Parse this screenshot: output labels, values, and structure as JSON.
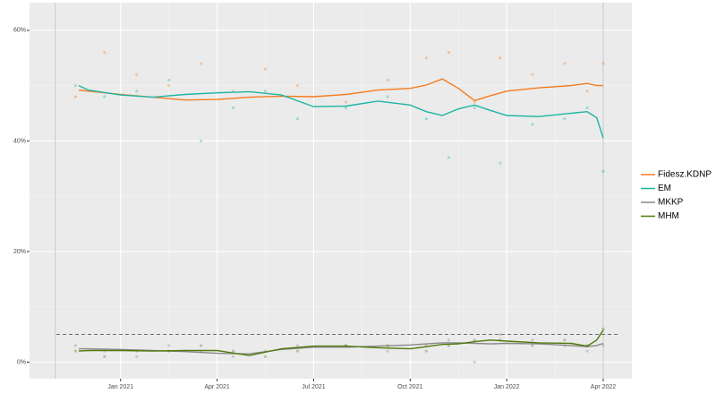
{
  "chart_data": {
    "type": "line",
    "x": [
      -1.3,
      -1,
      0,
      1,
      2,
      3,
      4,
      5,
      6,
      7,
      8,
      9,
      9.5,
      10,
      10.5,
      11,
      11.5,
      12,
      13,
      14,
      14.5,
      14.8,
      15
    ],
    "poll_x": [
      -1.4,
      -0.5,
      0.5,
      1.5,
      2.5,
      3.5,
      4.5,
      5.5,
      7,
      8.3,
      9.5,
      10.2,
      11,
      11.8,
      12.8,
      13.8,
      14.5,
      15
    ],
    "series": [
      {
        "name": "Fidesz.KDNP",
        "color": "#f57c1f",
        "values": [
          49.2,
          49.0,
          48.4,
          47.9,
          47.4,
          47.5,
          47.9,
          48.1,
          48.0,
          48.4,
          49.2,
          49.5,
          50.1,
          51.2,
          49.5,
          47.3,
          48.2,
          49.0,
          49.6,
          50.0,
          50.4,
          50.0,
          50.0
        ],
        "poll_values": [
          48,
          56,
          52,
          50,
          54,
          49,
          53,
          50,
          47,
          51,
          55,
          56,
          47,
          55,
          52,
          54,
          49,
          54
        ]
      },
      {
        "name": "EM",
        "color": "#1db5a3",
        "values": [
          50.0,
          49.2,
          48.3,
          47.9,
          48.4,
          48.7,
          48.9,
          48.3,
          46.2,
          46.3,
          47.2,
          46.5,
          45.3,
          44.6,
          45.8,
          46.5,
          45.5,
          44.6,
          44.4,
          45.0,
          45.3,
          44.2,
          40.5
        ],
        "poll_values": [
          50,
          48,
          49,
          51,
          40,
          46,
          49,
          44,
          46,
          48,
          44,
          37,
          46,
          36,
          43,
          44,
          46,
          34.5
        ]
      },
      {
        "name": "MKKP",
        "color": "#888888",
        "values": [
          2.4,
          2.4,
          2.3,
          2.1,
          1.9,
          1.6,
          1.5,
          2.3,
          2.7,
          2.7,
          2.9,
          3.1,
          3.3,
          3.5,
          3.5,
          3.4,
          3.3,
          3.4,
          3.3,
          3.0,
          2.8,
          3.0,
          3.4
        ],
        "poll_values": [
          3,
          2,
          1,
          3,
          2,
          1,
          2,
          3,
          3,
          2,
          3,
          4,
          0,
          5,
          4,
          3,
          2,
          3
        ]
      },
      {
        "name": "MHM",
        "color": "#4f7a0b",
        "values": [
          2.0,
          2.1,
          2.1,
          2.0,
          2.1,
          2.1,
          1.2,
          2.4,
          2.9,
          2.9,
          2.6,
          2.4,
          2.8,
          3.2,
          3.3,
          3.7,
          4.0,
          3.8,
          3.5,
          3.4,
          2.9,
          4.0,
          5.8
        ],
        "poll_values": [
          2,
          1,
          2,
          2,
          3,
          2,
          1,
          2,
          3,
          3,
          2,
          3,
          4,
          4,
          3,
          4,
          3,
          6
        ]
      }
    ],
    "xlim": [
      -2.83,
      15.89
    ],
    "xticks": [
      {
        "value": 0,
        "label": "Jan 2021"
      },
      {
        "value": 3,
        "label": "Apr 2021"
      },
      {
        "value": 6,
        "label": "Jul 2021"
      },
      {
        "value": 9,
        "label": "Oct 2021"
      },
      {
        "value": 12,
        "label": "Jan 2022"
      },
      {
        "value": 15,
        "label": "Apr 2022"
      }
    ],
    "ylim": [
      -3,
      65
    ],
    "yticks": [
      {
        "value": 0,
        "label": "0%"
      },
      {
        "value": 20,
        "label": "20%"
      },
      {
        "value": 40,
        "label": "40%"
      },
      {
        "value": 60,
        "label": "60%"
      }
    ],
    "hline": 5,
    "vlines": [
      -2.03,
      15
    ],
    "grid": true,
    "legend": "right"
  }
}
